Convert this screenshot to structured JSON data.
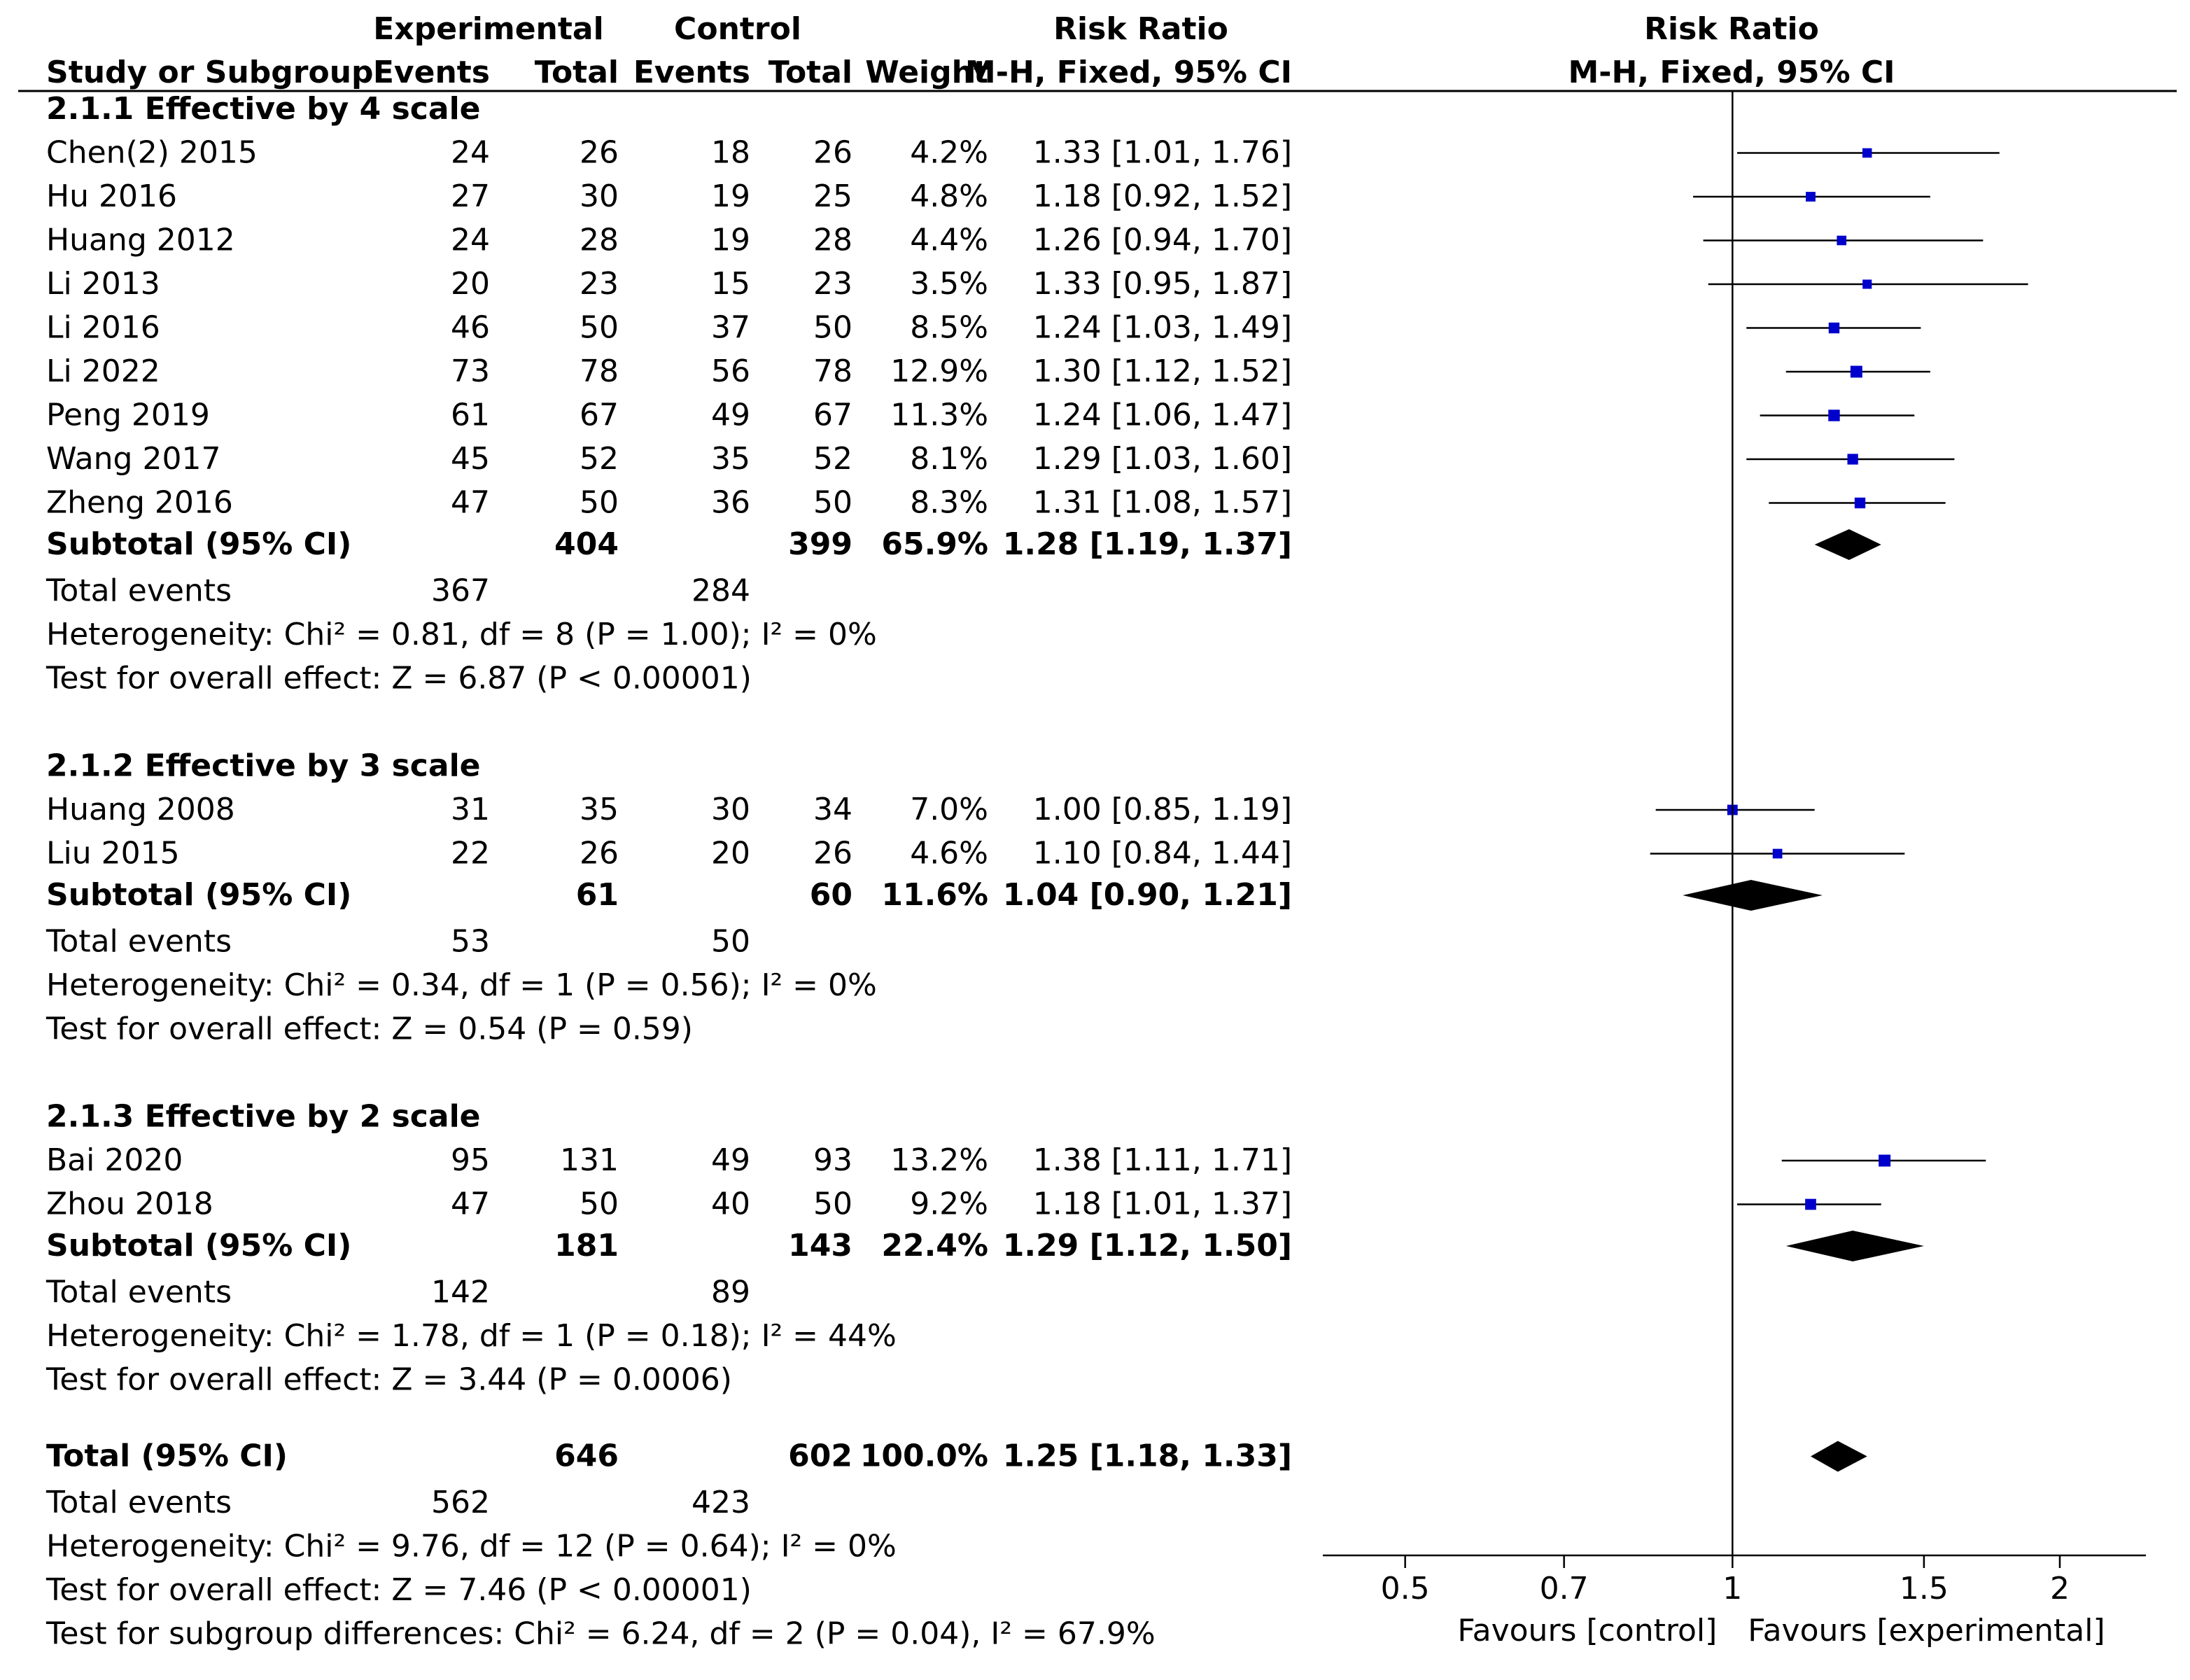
{
  "chart_data": {
    "type": "forest",
    "headers": {
      "group_experimental": "Experimental",
      "group_control": "Control",
      "risk_ratio_table": "Risk Ratio",
      "risk_ratio_plot": "Risk Ratio",
      "study": "Study or Subgroup",
      "exp_events": "Events",
      "exp_total": "Total",
      "ctl_events": "Events",
      "ctl_total": "Total",
      "weight": "Weight",
      "method_table": "M-H, Fixed, 95% CI",
      "method_plot": "M-H, Fixed, 95% CI"
    },
    "axis": {
      "scale": "log",
      "min": 0.42,
      "max": 2.4,
      "ticks": [
        {
          "value": 0.5,
          "label": "0.5"
        },
        {
          "value": 0.7,
          "label": "0.7"
        },
        {
          "value": 1,
          "label": "1"
        },
        {
          "value": 1.5,
          "label": "1.5"
        },
        {
          "value": 2,
          "label": "2"
        }
      ],
      "favours_left": "Favours [control]",
      "favours_right": "Favours [experimental]"
    },
    "subgroups": [
      {
        "title": "2.1.1 Effective by 4 scale",
        "studies": [
          {
            "name": "Chen(2) 2015",
            "e_events": "24",
            "e_total": "26",
            "c_events": "18",
            "c_total": "26",
            "weight": "4.2%",
            "ci_text": "1.33 [1.01, 1.76]",
            "rr": 1.33,
            "lo": 1.01,
            "hi": 1.76,
            "w": 4.2
          },
          {
            "name": "Hu 2016",
            "e_events": "27",
            "e_total": "30",
            "c_events": "19",
            "c_total": "25",
            "weight": "4.8%",
            "ci_text": "1.18 [0.92, 1.52]",
            "rr": 1.18,
            "lo": 0.92,
            "hi": 1.52,
            "w": 4.8
          },
          {
            "name": "Huang 2012",
            "e_events": "24",
            "e_total": "28",
            "c_events": "19",
            "c_total": "28",
            "weight": "4.4%",
            "ci_text": "1.26 [0.94, 1.70]",
            "rr": 1.26,
            "lo": 0.94,
            "hi": 1.7,
            "w": 4.4
          },
          {
            "name": "Li 2013",
            "e_events": "20",
            "e_total": "23",
            "c_events": "15",
            "c_total": "23",
            "weight": "3.5%",
            "ci_text": "1.33 [0.95, 1.87]",
            "rr": 1.33,
            "lo": 0.95,
            "hi": 1.87,
            "w": 3.5
          },
          {
            "name": "Li 2016",
            "e_events": "46",
            "e_total": "50",
            "c_events": "37",
            "c_total": "50",
            "weight": "8.5%",
            "ci_text": "1.24 [1.03, 1.49]",
            "rr": 1.24,
            "lo": 1.03,
            "hi": 1.49,
            "w": 8.5
          },
          {
            "name": "Li 2022",
            "e_events": "73",
            "e_total": "78",
            "c_events": "56",
            "c_total": "78",
            "weight": "12.9%",
            "ci_text": "1.30 [1.12, 1.52]",
            "rr": 1.3,
            "lo": 1.12,
            "hi": 1.52,
            "w": 12.9
          },
          {
            "name": "Peng 2019",
            "e_events": "61",
            "e_total": "67",
            "c_events": "49",
            "c_total": "67",
            "weight": "11.3%",
            "ci_text": "1.24 [1.06, 1.47]",
            "rr": 1.24,
            "lo": 1.06,
            "hi": 1.47,
            "w": 11.3
          },
          {
            "name": "Wang 2017",
            "e_events": "45",
            "e_total": "52",
            "c_events": "35",
            "c_total": "52",
            "weight": "8.1%",
            "ci_text": "1.29 [1.03, 1.60]",
            "rr": 1.29,
            "lo": 1.03,
            "hi": 1.6,
            "w": 8.1
          },
          {
            "name": "Zheng 2016",
            "e_events": "47",
            "e_total": "50",
            "c_events": "36",
            "c_total": "50",
            "weight": "8.3%",
            "ci_text": "1.31 [1.08, 1.57]",
            "rr": 1.31,
            "lo": 1.08,
            "hi": 1.57,
            "w": 8.3
          }
        ],
        "subtotal": {
          "label": "Subtotal (95% CI)",
          "e_total": "404",
          "c_total": "399",
          "weight": "65.9%",
          "ci_text": "1.28 [1.19, 1.37]",
          "rr": 1.28,
          "lo": 1.19,
          "hi": 1.37
        },
        "total_events": {
          "label": "Total events",
          "e": "367",
          "c": "284"
        },
        "heterogeneity": "Heterogeneity: Chi² = 0.81, df = 8 (P = 1.00); I² = 0%",
        "overall_effect": "Test for overall effect: Z = 6.87 (P < 0.00001)"
      },
      {
        "title": "2.1.2 Effective by 3 scale",
        "studies": [
          {
            "name": "Huang 2008",
            "e_events": "31",
            "e_total": "35",
            "c_events": "30",
            "c_total": "34",
            "weight": "7.0%",
            "ci_text": "1.00 [0.85, 1.19]",
            "rr": 1.0,
            "lo": 0.85,
            "hi": 1.19,
            "w": 7.0
          },
          {
            "name": "Liu 2015",
            "e_events": "22",
            "e_total": "26",
            "c_events": "20",
            "c_total": "26",
            "weight": "4.6%",
            "ci_text": "1.10 [0.84, 1.44]",
            "rr": 1.1,
            "lo": 0.84,
            "hi": 1.44,
            "w": 4.6
          }
        ],
        "subtotal": {
          "label": "Subtotal (95% CI)",
          "e_total": "61",
          "c_total": "60",
          "weight": "11.6%",
          "ci_text": "1.04 [0.90, 1.21]",
          "rr": 1.04,
          "lo": 0.9,
          "hi": 1.21
        },
        "total_events": {
          "label": "Total events",
          "e": "53",
          "c": "50"
        },
        "heterogeneity": "Heterogeneity: Chi² = 0.34, df = 1 (P = 0.56); I² = 0%",
        "overall_effect": "Test for overall effect: Z = 0.54 (P = 0.59)"
      },
      {
        "title": "2.1.3 Effective by 2 scale",
        "studies": [
          {
            "name": "Bai 2020",
            "e_events": "95",
            "e_total": "131",
            "c_events": "49",
            "c_total": "93",
            "weight": "13.2%",
            "ci_text": "1.38 [1.11, 1.71]",
            "rr": 1.38,
            "lo": 1.11,
            "hi": 1.71,
            "w": 13.2
          },
          {
            "name": "Zhou 2018",
            "e_events": "47",
            "e_total": "50",
            "c_events": "40",
            "c_total": "50",
            "weight": "9.2%",
            "ci_text": "1.18 [1.01, 1.37]",
            "rr": 1.18,
            "lo": 1.01,
            "hi": 1.37,
            "w": 9.2
          }
        ],
        "subtotal": {
          "label": "Subtotal (95% CI)",
          "e_total": "181",
          "c_total": "143",
          "weight": "22.4%",
          "ci_text": "1.29 [1.12, 1.50]",
          "rr": 1.29,
          "lo": 1.12,
          "hi": 1.5
        },
        "total_events": {
          "label": "Total events",
          "e": "142",
          "c": "89"
        },
        "heterogeneity": "Heterogeneity: Chi² = 1.78, df = 1 (P = 0.18); I² = 44%",
        "overall_effect": "Test for overall effect: Z = 3.44 (P = 0.0006)"
      }
    ],
    "overall": {
      "label": "Total (95% CI)",
      "e_total": "646",
      "c_total": "602",
      "weight": "100.0%",
      "ci_text": "1.25 [1.18, 1.33]",
      "rr": 1.25,
      "lo": 1.18,
      "hi": 1.33,
      "total_events": {
        "label": "Total events",
        "e": "562",
        "c": "423"
      },
      "heterogeneity": "Heterogeneity: Chi² = 9.76, df = 12 (P = 0.64); I² = 0%",
      "overall_effect": "Test for overall effect: Z = 7.46 (P < 0.00001)",
      "subgroup_differences": "Test for subgroup differences: Chi² = 6.24, df = 2 (P = 0.04), I² = 67.9%"
    },
    "colors": {
      "marker": "#0000cc",
      "line": "#000000",
      "text": "#000000"
    }
  }
}
